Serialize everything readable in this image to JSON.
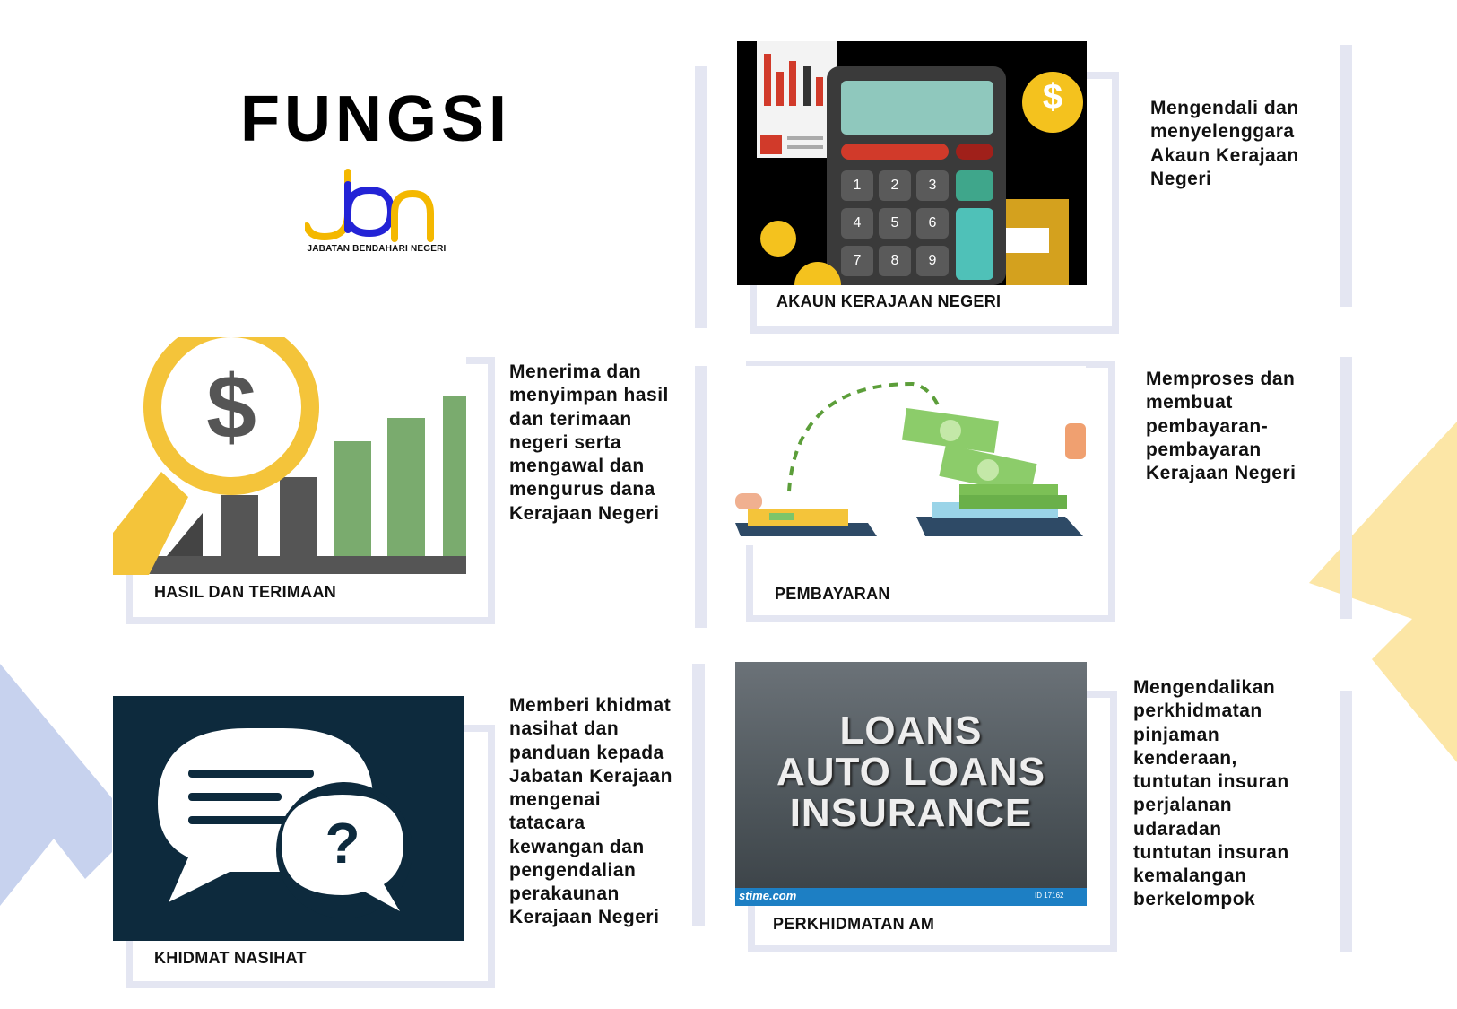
{
  "page": {
    "title": "FUNGSI",
    "logo": {
      "mark": "jbn",
      "text": "JABATAN BENDAHARI NEGERI"
    },
    "cards": [
      {
        "id": "akaun",
        "caption": "AKAUN KERAJAAN NEGERI",
        "description": "Mengendali dan menyelenggara Akaun Kerajaan Negeri"
      },
      {
        "id": "hasil",
        "caption": "HASIL DAN TERIMAAN",
        "description": "Menerima dan menyimpan hasil dan terimaan negeri serta mengawal dan mengurus dana Kerajaan Negeri"
      },
      {
        "id": "pembayaran",
        "caption": "PEMBAYARAN",
        "description": "Memproses dan membuat pembayaran-pembayaran Kerajaan Negeri"
      },
      {
        "id": "khidmat",
        "caption": "KHIDMAT NASIHAT",
        "description": "Memberi khidmat nasihat dan panduan kepada Jabatan Kerajaan mengenai tatacara kewangan dan pengendalian perakaunan Kerajaan Negeri"
      },
      {
        "id": "perkhidmatan",
        "caption": "PERKHIDMATAN AM",
        "description": "Mengendalikan perkhidmatan pinjaman kenderaan, tuntutan insuran perjalanan udaradan tuntutan insuran kemalangan berkelompok"
      }
    ],
    "images": {
      "calculator_keys": [
        "1",
        "2",
        "3",
        "4",
        "5",
        "6",
        "7",
        "8",
        "9"
      ],
      "dollar_sign": "$",
      "question_mark": "?",
      "loans_banner": {
        "lines": [
          "LOANS",
          "AUTO LOANS",
          "INSURANCE"
        ],
        "watermark": "stime.com",
        "id": "ID 17162"
      }
    },
    "colors": {
      "frame": "#e4e6f2",
      "logo_blue": "#2323d6",
      "logo_yellow": "#f4b800",
      "dark_panel": "#0d2a3d",
      "deco_blue": "#c7d2ee",
      "deco_yellow": "#fce6a6"
    }
  }
}
